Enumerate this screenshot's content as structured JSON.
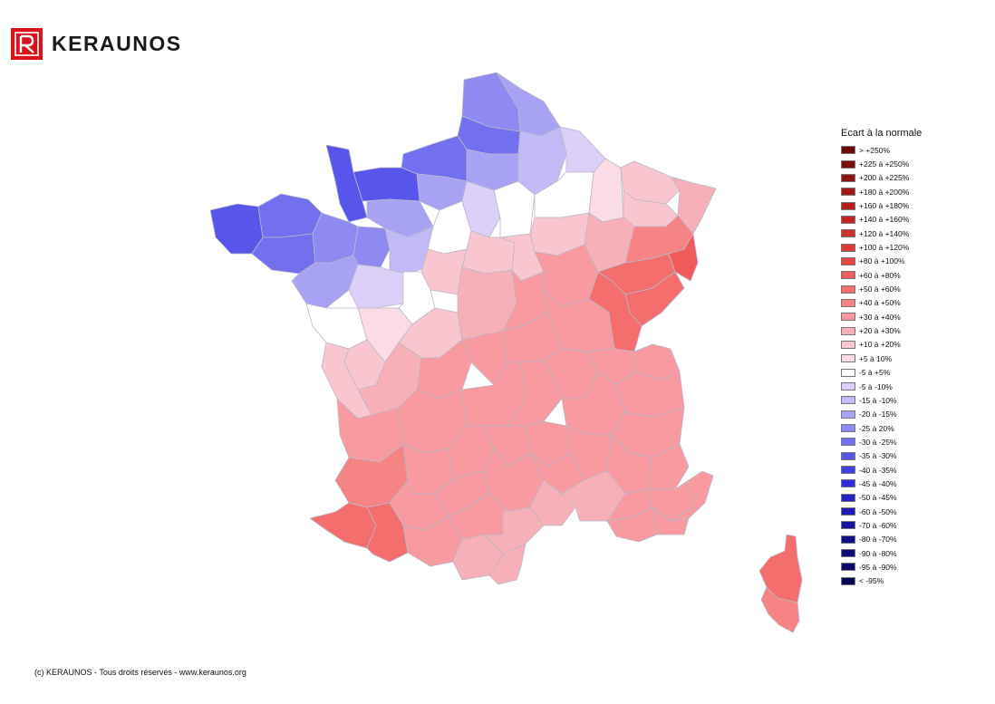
{
  "header": {
    "brand_name": "KERAUNOS"
  },
  "legend": {
    "title": "Ecart à la normale",
    "items": [
      {
        "label": "> +250%",
        "color": "#6b0808"
      },
      {
        "label": "+225 à +250%",
        "color": "#7d0c0c"
      },
      {
        "label": "+200 à +225%",
        "color": "#901111"
      },
      {
        "label": "+180 à +200%",
        "color": "#a31616"
      },
      {
        "label": "+160 à +180%",
        "color": "#b51c1c"
      },
      {
        "label": "+140 à +160%",
        "color": "#c42424"
      },
      {
        "label": "+120 à +140%",
        "color": "#d22e2e"
      },
      {
        "label": "+100 à +120%",
        "color": "#de3838"
      },
      {
        "label": "+80 à +100%",
        "color": "#e84545"
      },
      {
        "label": "+60 à +80%",
        "color": "#ef5a5a"
      },
      {
        "label": "+50 à +60%",
        "color": "#f46e6e"
      },
      {
        "label": "+40 à +50%",
        "color": "#f78484"
      },
      {
        "label": "+30 à +40%",
        "color": "#f89a9f"
      },
      {
        "label": "+20 à +30%",
        "color": "#f8b0b8"
      },
      {
        "label": "+10 à +20%",
        "color": "#f9c6d0"
      },
      {
        "label": "+5 à 10%",
        "color": "#fadbe6"
      },
      {
        "label": "-5 à +5%",
        "color": "#ffffff"
      },
      {
        "label": "-5 à -10%",
        "color": "#dcd0f8"
      },
      {
        "label": "-15 à -10%",
        "color": "#c2baf6"
      },
      {
        "label": "-20 à -15%",
        "color": "#a8a2f4"
      },
      {
        "label": "-25 à 20%",
        "color": "#8e8af1"
      },
      {
        "label": "-30 à -25%",
        "color": "#7270ee"
      },
      {
        "label": "-35 à -30%",
        "color": "#5856ea"
      },
      {
        "label": "-40 à -35%",
        "color": "#403ee4"
      },
      {
        "label": "-45 à -40%",
        "color": "#2f2bd8"
      },
      {
        "label": "-50 à -45%",
        "color": "#2622c6"
      },
      {
        "label": "-60 à -50%",
        "color": "#1e1ab4"
      },
      {
        "label": "-70 à -60%",
        "color": "#1714a0"
      },
      {
        "label": "-80 à -70%",
        "color": "#120f8c"
      },
      {
        "label": "-90 à -80%",
        "color": "#0d0b78"
      },
      {
        "label": "-95 à -90%",
        "color": "#090766"
      },
      {
        "label": "< -95%",
        "color": "#050454"
      }
    ]
  },
  "footer": {
    "copyright": "(c) KERAUNOS - Tous droits réservés - www.keraunos.org"
  },
  "colors": {
    "brand_red": "#d9121b",
    "border": "#b9b9c9"
  }
}
